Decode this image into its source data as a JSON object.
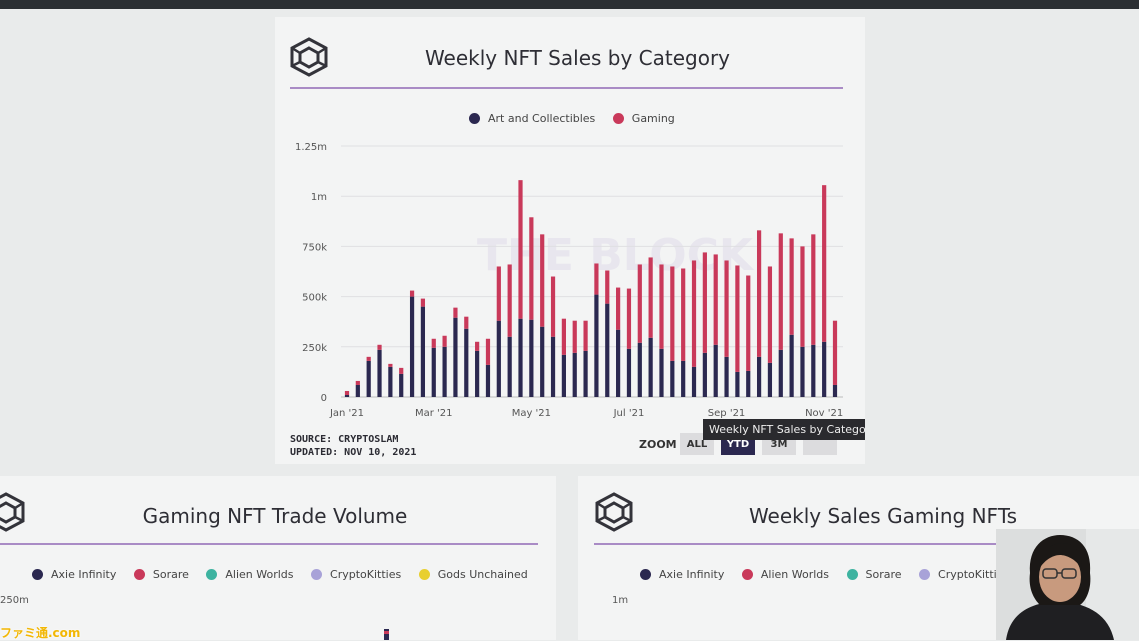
{
  "colors": {
    "art": "#2b2850",
    "gaming": "#c9395a",
    "axie": "#2b2850",
    "sorare": "#c9395a",
    "alien": "#3db3a0",
    "kitties": "#a8a2d8",
    "gods": "#e8cf2f"
  },
  "main_card": {
    "title": "Weekly NFT Sales by Category",
    "watermark": "THE BLOCK",
    "source_line1": "SOURCE: CRYPTOSLAM",
    "source_line2": "UPDATED: NOV 10, 2021",
    "zoom_label": "ZOOM",
    "zoom_buttons": [
      "ALL",
      "YTD",
      "3M",
      ""
    ],
    "zoom_selected": "YTD",
    "tooltip": "Weekly NFT Sales by Catego"
  },
  "chart_data": [
    {
      "type": "bar",
      "stacked": true,
      "title": "Weekly NFT Sales by Category",
      "legend": [
        "Art and Collectibles",
        "Gaming"
      ],
      "legend_position": "top-center",
      "y_ticks": [
        "0",
        "250k",
        "500k",
        "750k",
        "1m",
        "1.25m"
      ],
      "ylim": [
        0,
        1250000
      ],
      "x_ticks": [
        "Jan '21",
        "Mar '21",
        "May '21",
        "Jul '21",
        "Sep '21",
        "Nov '21"
      ],
      "x_tick_index": [
        0,
        8,
        17,
        26,
        35,
        44
      ],
      "grid": true,
      "series": [
        {
          "name": "Art and Collectibles",
          "values": [
            10000,
            60000,
            180000,
            235000,
            150000,
            115000,
            500000,
            450000,
            245000,
            250000,
            395000,
            340000,
            230000,
            160000,
            380000,
            300000,
            390000,
            385000,
            350000,
            300000,
            210000,
            220000,
            230000,
            510000,
            465000,
            335000,
            240000,
            270000,
            295000,
            240000,
            180000,
            180000,
            150000,
            220000,
            260000,
            200000,
            125000,
            130000,
            200000,
            170000,
            235000,
            310000,
            250000,
            260000,
            275000,
            60000
          ]
        },
        {
          "name": "Gaming",
          "values": [
            20000,
            20000,
            20000,
            25000,
            15000,
            30000,
            30000,
            40000,
            45000,
            55000,
            50000,
            60000,
            45000,
            130000,
            270000,
            360000,
            690000,
            510000,
            460000,
            300000,
            180000,
            160000,
            150000,
            155000,
            165000,
            210000,
            300000,
            390000,
            400000,
            420000,
            470000,
            460000,
            530000,
            500000,
            450000,
            480000,
            530000,
            475000,
            630000,
            480000,
            580000,
            480000,
            500000,
            550000,
            780000,
            320000
          ]
        }
      ]
    },
    {
      "type": "bar",
      "title": "Gaming NFT Trade Volume",
      "legend": [
        "Axie Infinity",
        "Sorare",
        "Alien Worlds",
        "CryptoKitties",
        "Gods Unchained"
      ],
      "y_ticks": [
        "250m"
      ]
    },
    {
      "type": "bar",
      "title": "Weekly Sales Gaming NFTs",
      "legend": [
        "Axie Infinity",
        "Alien Worlds",
        "Sorare",
        "CryptoKitties"
      ],
      "y_ticks": [
        "1m"
      ]
    }
  ],
  "overlay": {
    "famitsu": "ファミ通.com"
  }
}
